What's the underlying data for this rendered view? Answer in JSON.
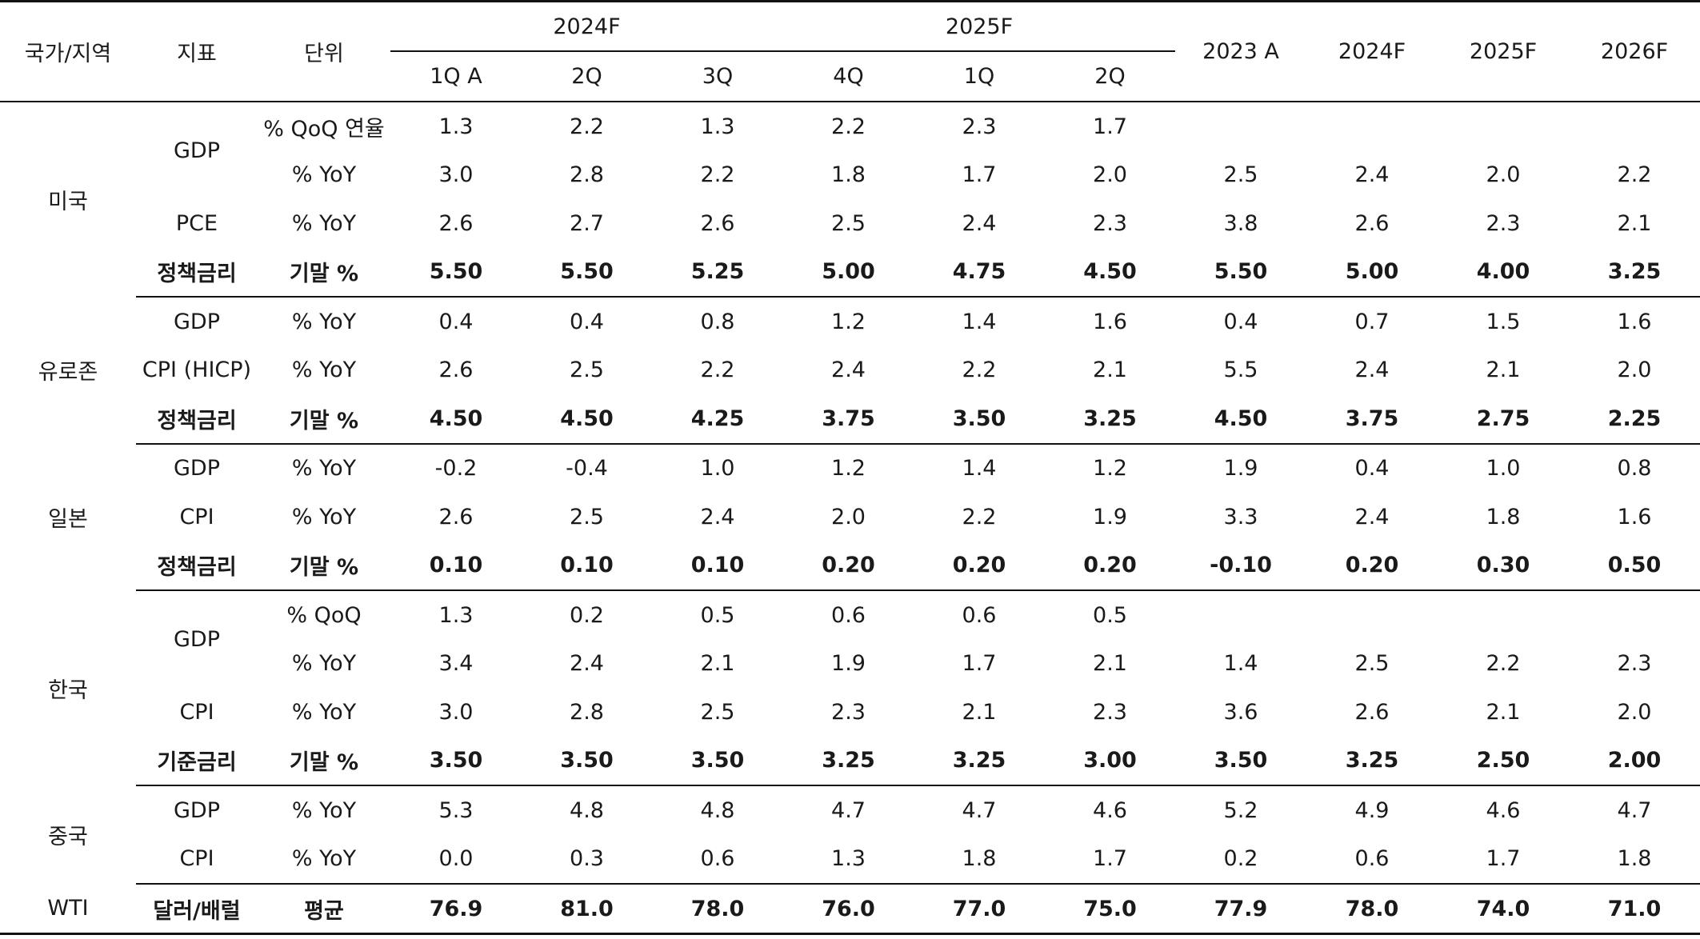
{
  "header": {
    "country": "국가/지역",
    "indicator": "지표",
    "unit": "단위",
    "group_2024f": "2024F",
    "group_2025f": "2025F",
    "quarters": [
      "1Q A",
      "2Q",
      "3Q",
      "4Q",
      "1Q",
      "2Q"
    ],
    "years": [
      "2023 A",
      "2024F",
      "2025F",
      "2026F"
    ]
  },
  "rows": [
    {
      "country": "미국",
      "indicator": "GDP",
      "unit": "% QoQ 연율",
      "q": [
        "1.3",
        "2.2",
        "1.3",
        "2.2",
        "2.3",
        "1.7"
      ],
      "y": [
        "",
        "",
        "",
        ""
      ]
    },
    {
      "unit": "% YoY",
      "q": [
        "3.0",
        "2.8",
        "2.2",
        "1.8",
        "1.7",
        "2.0"
      ],
      "y": [
        "2.5",
        "2.4",
        "2.0",
        "2.2"
      ]
    },
    {
      "indicator": "PCE",
      "unit": "% YoY",
      "q": [
        "2.6",
        "2.7",
        "2.6",
        "2.5",
        "2.4",
        "2.3"
      ],
      "y": [
        "3.8",
        "2.6",
        "2.3",
        "2.1"
      ]
    },
    {
      "indicator": "정책금리",
      "unit": "기말 %",
      "q": [
        "5.50",
        "5.50",
        "5.25",
        "5.00",
        "4.75",
        "4.50"
      ],
      "y": [
        "5.50",
        "5.00",
        "4.00",
        "3.25"
      ]
    },
    {
      "country": "유로존",
      "indicator": "GDP",
      "unit": "% YoY",
      "q": [
        "0.4",
        "0.4",
        "0.8",
        "1.2",
        "1.4",
        "1.6"
      ],
      "y": [
        "0.4",
        "0.7",
        "1.5",
        "1.6"
      ]
    },
    {
      "indicator": "CPI (HICP)",
      "unit": "% YoY",
      "q": [
        "2.6",
        "2.5",
        "2.2",
        "2.4",
        "2.2",
        "2.1"
      ],
      "y": [
        "5.5",
        "2.4",
        "2.1",
        "2.0"
      ]
    },
    {
      "indicator": "정책금리",
      "unit": "기말 %",
      "q": [
        "4.50",
        "4.50",
        "4.25",
        "3.75",
        "3.50",
        "3.25"
      ],
      "y": [
        "4.50",
        "3.75",
        "2.75",
        "2.25"
      ]
    },
    {
      "country": "일본",
      "indicator": "GDP",
      "unit": "% YoY",
      "q": [
        "-0.2",
        "-0.4",
        "1.0",
        "1.2",
        "1.4",
        "1.2"
      ],
      "y": [
        "1.9",
        "0.4",
        "1.0",
        "0.8"
      ]
    },
    {
      "indicator": "CPI",
      "unit": "% YoY",
      "q": [
        "2.6",
        "2.5",
        "2.4",
        "2.0",
        "2.2",
        "1.9"
      ],
      "y": [
        "3.3",
        "2.4",
        "1.8",
        "1.6"
      ]
    },
    {
      "indicator": "정책금리",
      "unit": "기말 %",
      "q": [
        "0.10",
        "0.10",
        "0.10",
        "0.20",
        "0.20",
        "0.20"
      ],
      "y": [
        "-0.10",
        "0.20",
        "0.30",
        "0.50"
      ]
    },
    {
      "country": "한국",
      "indicator": "GDP",
      "unit": "% QoQ",
      "q": [
        "1.3",
        "0.2",
        "0.5",
        "0.6",
        "0.6",
        "0.5"
      ],
      "y": [
        "",
        "",
        "",
        ""
      ]
    },
    {
      "unit": "% YoY",
      "q": [
        "3.4",
        "2.4",
        "2.1",
        "1.9",
        "1.7",
        "2.1"
      ],
      "y": [
        "1.4",
        "2.5",
        "2.2",
        "2.3"
      ]
    },
    {
      "indicator": "CPI",
      "unit": "% YoY",
      "q": [
        "3.0",
        "2.8",
        "2.5",
        "2.3",
        "2.1",
        "2.3"
      ],
      "y": [
        "3.6",
        "2.6",
        "2.1",
        "2.0"
      ]
    },
    {
      "indicator": "기준금리",
      "unit": "기말 %",
      "q": [
        "3.50",
        "3.50",
        "3.50",
        "3.25",
        "3.25",
        "3.00"
      ],
      "y": [
        "3.50",
        "3.25",
        "2.50",
        "2.00"
      ]
    },
    {
      "country": "중국",
      "indicator": "GDP",
      "unit": "% YoY",
      "q": [
        "5.3",
        "4.8",
        "4.8",
        "4.7",
        "4.7",
        "4.6"
      ],
      "y": [
        "5.2",
        "4.9",
        "4.6",
        "4.7"
      ]
    },
    {
      "indicator": "CPI",
      "unit": "% YoY",
      "q": [
        "0.0",
        "0.3",
        "0.6",
        "1.3",
        "1.8",
        "1.7"
      ],
      "y": [
        "0.2",
        "0.6",
        "1.7",
        "1.8"
      ]
    },
    {
      "country": "WTI",
      "indicator": "달러/배럴",
      "unit": "평균",
      "q": [
        "76.9",
        "81.0",
        "78.0",
        "76.0",
        "77.0",
        "75.0"
      ],
      "y": [
        "77.9",
        "78.0",
        "74.0",
        "71.0"
      ]
    }
  ]
}
